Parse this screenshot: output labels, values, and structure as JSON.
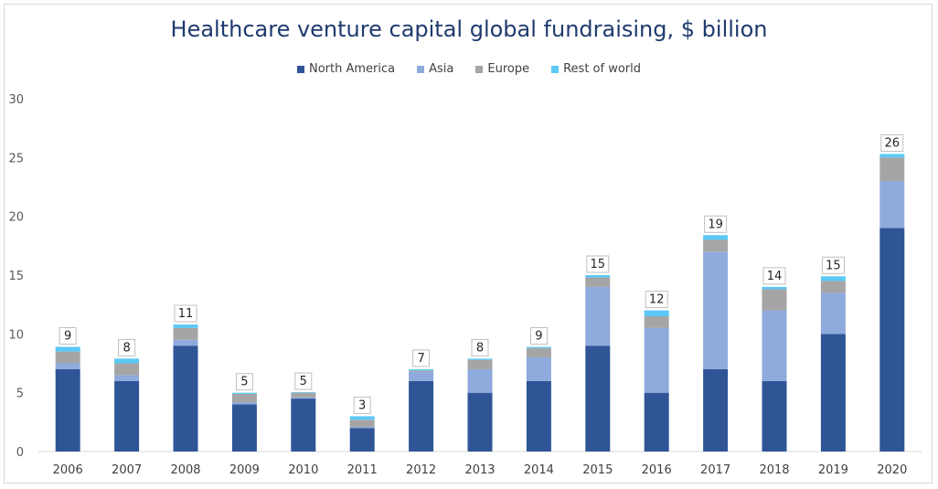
{
  "chart_data": {
    "type": "bar",
    "stacked": true,
    "title": "Healthcare venture capital global fundraising, $ billion",
    "xlabel": "",
    "ylabel": "",
    "ylim": [
      0,
      30
    ],
    "yticks": [
      0,
      5,
      10,
      15,
      20,
      25,
      30
    ],
    "grid": false,
    "legend_position": "top",
    "categories": [
      "2006",
      "2007",
      "2008",
      "2009",
      "2010",
      "2011",
      "2012",
      "2013",
      "2014",
      "2015",
      "2016",
      "2017",
      "2018",
      "2019",
      "2020"
    ],
    "series": [
      {
        "name": "North America",
        "color": "#2f5597",
        "values": [
          7,
          6,
          9,
          4,
          4.5,
          2,
          6,
          5,
          6,
          9,
          5,
          7,
          6,
          10,
          19
        ]
      },
      {
        "name": "Asia",
        "color": "#8faadc",
        "values": [
          0.5,
          0.5,
          0.5,
          0.2,
          0.1,
          0.1,
          0.8,
          2,
          2,
          5,
          5.5,
          10,
          6,
          3.5,
          4
        ]
      },
      {
        "name": "Europe",
        "color": "#a5a5a5",
        "values": [
          1,
          1,
          1,
          0.7,
          0.4,
          0.6,
          0.1,
          0.8,
          0.8,
          0.8,
          1,
          1,
          1.8,
          1,
          2
        ]
      },
      {
        "name": "Rest of world",
        "color": "#5bc8f5",
        "values": [
          0.4,
          0.4,
          0.3,
          0.1,
          0.05,
          0.3,
          0.1,
          0.1,
          0.1,
          0.2,
          0.5,
          0.4,
          0.2,
          0.4,
          0.3
        ]
      }
    ],
    "totals": [
      "9",
      "8",
      "11",
      "5",
      "5",
      "3",
      "7",
      "8",
      "9",
      "15",
      "12",
      "19",
      "14",
      "15",
      "26"
    ]
  }
}
